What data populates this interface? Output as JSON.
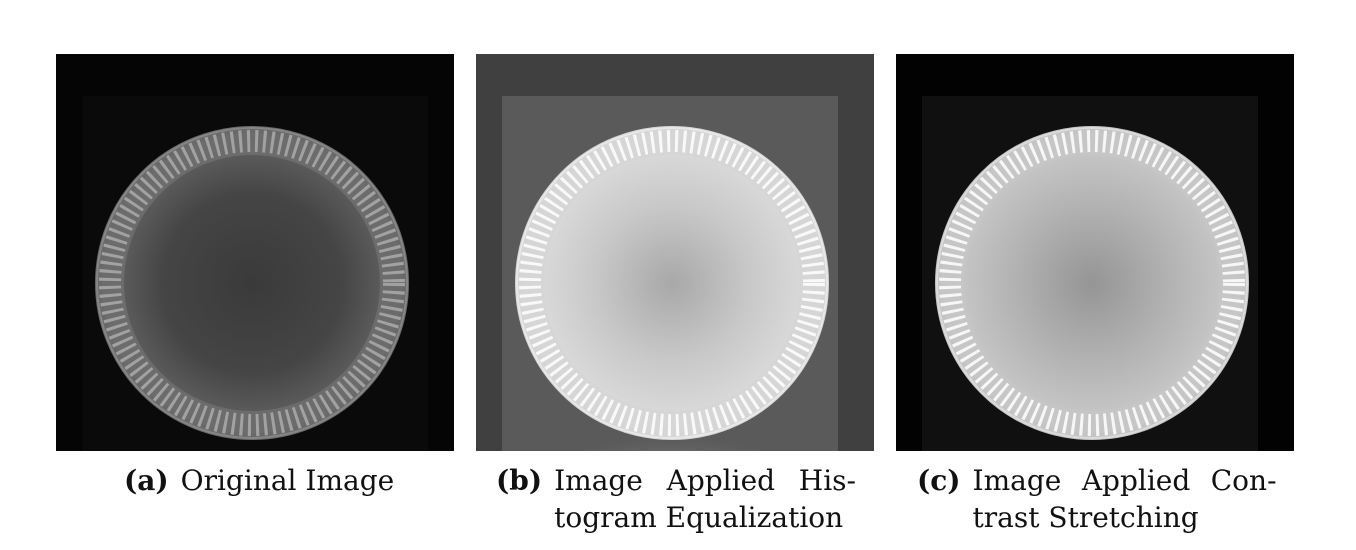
{
  "figure": {
    "panels": [
      {
        "id": "a",
        "tag": "(a)",
        "caption_line1": "Original Image",
        "caption_line2": "",
        "background": "#050505",
        "frame_color": "#0a0a0a",
        "ring_color": "#8c8c8c",
        "center_color": "#3a3a3a"
      },
      {
        "id": "b",
        "tag": "(b)",
        "caption_line1": "Image Applied His-",
        "caption_line2": "togram Equalization",
        "background": "#404040",
        "frame_color": "#595959",
        "ring_color": "#f2f2f2",
        "center_color": "#b5b5b5"
      },
      {
        "id": "c",
        "tag": "(c)",
        "caption_line1": "Image Applied Con-",
        "caption_line2": "trast Stretching",
        "background": "#020202",
        "frame_color": "#101010",
        "ring_color": "#eaeaea",
        "center_color": "#9a9a9a"
      }
    ]
  }
}
